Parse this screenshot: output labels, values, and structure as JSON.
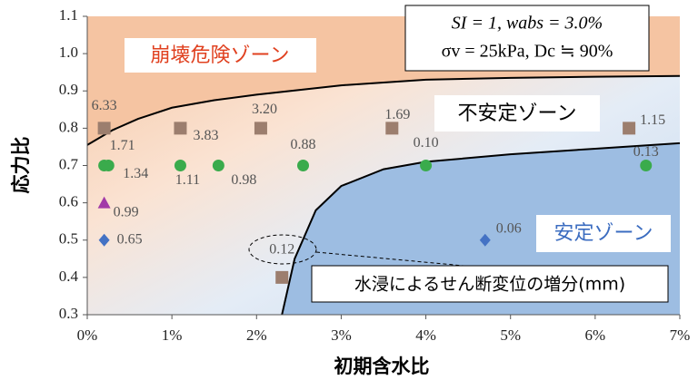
{
  "chart_data": {
    "type": "scatter",
    "xlabel": "初期含水比",
    "ylabel": "応力比",
    "xlim": [
      0,
      7
    ],
    "ylim": [
      0.3,
      1.1
    ],
    "xticks": [
      {
        "value": 0,
        "label": "0%"
      },
      {
        "value": 1,
        "label": "1%"
      },
      {
        "value": 2,
        "label": "2%"
      },
      {
        "value": 3,
        "label": "3%"
      },
      {
        "value": 4,
        "label": "4%"
      },
      {
        "value": 5,
        "label": "5%"
      },
      {
        "value": 6,
        "label": "6%"
      },
      {
        "value": 7,
        "label": "7%"
      }
    ],
    "yticks": [
      0.3,
      0.4,
      0.5,
      0.6,
      0.7,
      0.8,
      0.9,
      {
        "value": 1,
        "label": "1.0"
      },
      1.1
    ],
    "annotations": {
      "zone_danger": "崩壊危険ゾーン",
      "zone_unstable": "不安定ゾーン",
      "zone_stable": "安定ゾーン",
      "note": "水浸によるせん断変位の増分(mm)",
      "conditions_1": "SI = 1, wabs = 3.0%",
      "conditions_2": "σv = 25kPa, Dc ≒ 90%"
    },
    "boundaries": [
      {
        "color": "#000000",
        "x": [
          0,
          0.3,
          0.6,
          1,
          1.5,
          2,
          3,
          4,
          5,
          6,
          7
        ],
        "y": [
          0.755,
          0.795,
          0.825,
          0.855,
          0.875,
          0.89,
          0.915,
          0.93,
          0.935,
          0.938,
          0.94
        ]
      },
      {
        "color": "#000000",
        "x": [
          2.3,
          2.45,
          2.7,
          3.0,
          3.5,
          4,
          5,
          6,
          7
        ],
        "y": [
          0.3,
          0.45,
          0.58,
          0.645,
          0.69,
          0.71,
          0.73,
          0.745,
          0.76
        ]
      }
    ],
    "series": [
      {
        "marker": "square",
        "color": "#9c7e6e",
        "x": [
          0.2,
          1.1,
          2.05,
          3.6,
          6.4,
          2.3
        ],
        "values": [
          0.8,
          0.8,
          0.8,
          0.8,
          0.8,
          0.4
        ],
        "point_labels": [
          "6.33",
          "3.83",
          "3.20",
          "1.69",
          "1.15",
          "0.12"
        ]
      },
      {
        "marker": "circle",
        "color": "#3aab4c",
        "x": [
          0.2,
          0.25,
          1.1,
          1.55,
          2.55,
          4.0,
          6.6
        ],
        "values": [
          0.7,
          0.7,
          0.7,
          0.7,
          0.7,
          0.7,
          0.7
        ],
        "point_labels": [
          "1.71",
          "1.34",
          "1.11",
          "0.98",
          "0.88",
          "0.10",
          "0.13"
        ]
      },
      {
        "marker": "triangle",
        "color": "#a23aa8",
        "x": [
          0.2
        ],
        "values": [
          0.6
        ],
        "point_labels": [
          "0.99"
        ]
      },
      {
        "marker": "diamond",
        "color": "#4472c4",
        "x": [
          0.2,
          4.7
        ],
        "values": [
          0.5,
          0.5
        ],
        "point_labels": [
          "0.65",
          "0.06"
        ]
      }
    ]
  }
}
